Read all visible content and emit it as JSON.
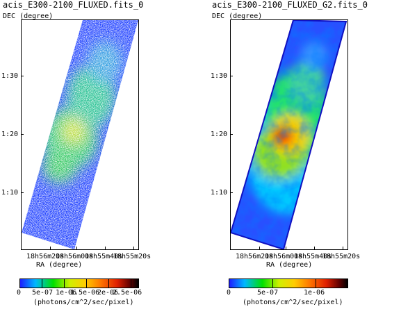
{
  "panels": [
    {
      "title": "acis_E300-2100_FLUXED.fits_0",
      "y_axis_label": "DEC (degree)",
      "y_ticks": [
        "1:30",
        "1:20",
        "1:10"
      ],
      "x_ticks": [
        "18h56m20s",
        "18h56m00s",
        "18h55m40s",
        "18h55m20s"
      ],
      "x_axis_label": "RA (degree)",
      "colorbar": {
        "ticks": [
          "0",
          "5e-07",
          "1e-06",
          "1.5e-06",
          "2e-06",
          "2.5e-06"
        ],
        "unit_label": "(photons/cm^2/sec/pixel)"
      }
    },
    {
      "title": "acis_E300-2100_FLUXED_G2.fits_0",
      "y_axis_label": "DEC (degree)",
      "y_ticks": [
        "1:30",
        "1:20",
        "1:10"
      ],
      "x_ticks": [
        "18h56m20s",
        "18h56m00s",
        "18h55m40s",
        "18h55m20s"
      ],
      "x_axis_label": "RA (degree)",
      "colorbar": {
        "ticks": [
          "0",
          "5e-07",
          "1e-06"
        ],
        "unit_label": "(photons/cm^2/sec/pixel)"
      }
    }
  ]
}
